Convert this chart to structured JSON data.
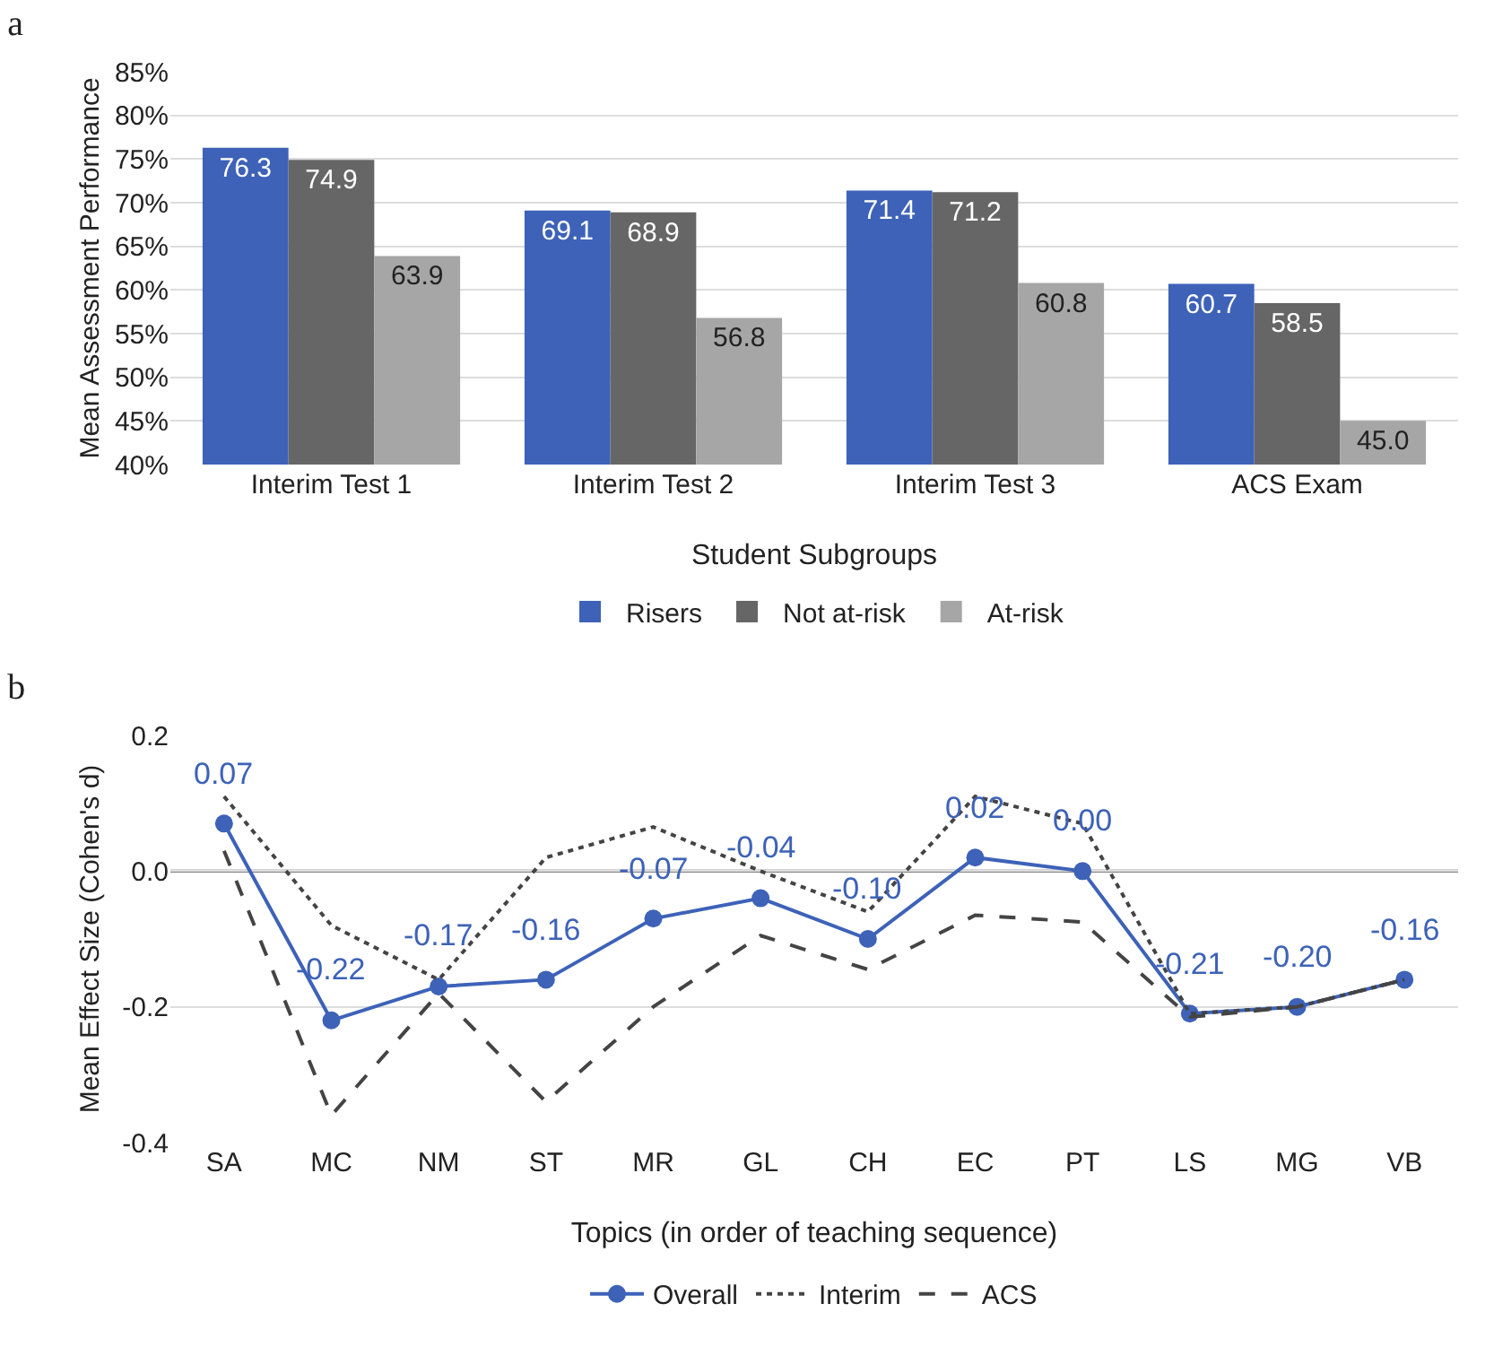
{
  "chart_data": [
    {
      "type": "bar",
      "title": "a",
      "xlabel": "Student Subgroups",
      "ylabel": "Mean Assessment Performance",
      "categories": [
        "Interim Test 1",
        "Interim Test 2",
        "Interim Test 3",
        "ACS Exam"
      ],
      "series": [
        {
          "name": "Risers",
          "color": "#3d62b8",
          "values": [
            76.3,
            69.1,
            71.4,
            60.7
          ],
          "value_labels": [
            "76.3",
            "69.1",
            "71.4",
            "60.7"
          ]
        },
        {
          "name": "Not at-risk",
          "color": "#666666",
          "values": [
            74.9,
            68.9,
            71.2,
            58.5
          ],
          "value_labels": [
            "74.9",
            "68.9",
            "71.2",
            "58.5"
          ]
        },
        {
          "name": "At-risk",
          "color": "#a6a6a6",
          "values": [
            63.9,
            56.8,
            60.8,
            45.0
          ],
          "value_labels": [
            "63.9",
            "56.8",
            "60.8",
            "45.0"
          ]
        }
      ],
      "ylim": [
        40,
        85
      ],
      "yticks": [
        {
          "value": 40,
          "label": "40%"
        },
        {
          "value": 45,
          "label": "45%"
        },
        {
          "value": 50,
          "label": "50%"
        },
        {
          "value": 55,
          "label": "55%"
        },
        {
          "value": 60,
          "label": "60%"
        },
        {
          "value": 65,
          "label": "65%"
        },
        {
          "value": 70,
          "label": "70%"
        },
        {
          "value": 75,
          "label": "75%"
        },
        {
          "value": 80,
          "label": "80%"
        },
        {
          "value": 85,
          "label": "85%"
        }
      ],
      "grid": "y",
      "legend": "bottom"
    },
    {
      "type": "line",
      "title": "b",
      "xlabel": "Topics (in order of teaching sequence)",
      "ylabel": "Mean Effect Size (Cohen's d)",
      "categories": [
        "SA",
        "MC",
        "NM",
        "ST",
        "MR",
        "GL",
        "CH",
        "EC",
        "PT",
        "LS",
        "MG",
        "VB"
      ],
      "series": [
        {
          "name": "Overall",
          "color": "#3d62b8",
          "marker": "circle",
          "line_style": "solid",
          "values": [
            0.07,
            -0.22,
            -0.17,
            -0.16,
            -0.07,
            -0.04,
            -0.1,
            0.02,
            0.0,
            -0.21,
            -0.2,
            -0.16
          ],
          "value_labels": [
            "0.07",
            "-0.22",
            "-0.17",
            "-0.16",
            "-0.07",
            "-0.04",
            "-0.10",
            "0.02",
            "0.00",
            "-0.21",
            "-0.20",
            "-0.16"
          ]
        },
        {
          "name": "Interim",
          "color": "#444444",
          "marker": "none",
          "line_style": "dotted",
          "values": [
            0.11,
            -0.08,
            -0.16,
            0.02,
            0.065,
            0.0,
            -0.06,
            0.11,
            0.07,
            -0.21,
            -0.2,
            -0.16
          ]
        },
        {
          "name": "ACS",
          "color": "#444444",
          "marker": "none",
          "line_style": "dashed",
          "values": [
            0.03,
            -0.36,
            -0.18,
            -0.34,
            -0.2,
            -0.095,
            -0.145,
            -0.065,
            -0.075,
            -0.215,
            -0.2,
            -0.16
          ]
        }
      ],
      "ylim": [
        -0.4,
        0.2
      ],
      "yticks": [
        {
          "value": -0.4,
          "label": "-0.4"
        },
        {
          "value": -0.2,
          "label": "-0.2"
        },
        {
          "value": 0,
          "label": "0.0"
        },
        {
          "value": 0.2,
          "label": "0.2"
        }
      ],
      "ref_lines": [
        {
          "axis": "y",
          "value": 0,
          "color": "#555555"
        }
      ],
      "grid": "y",
      "legend": "bottom"
    }
  ]
}
